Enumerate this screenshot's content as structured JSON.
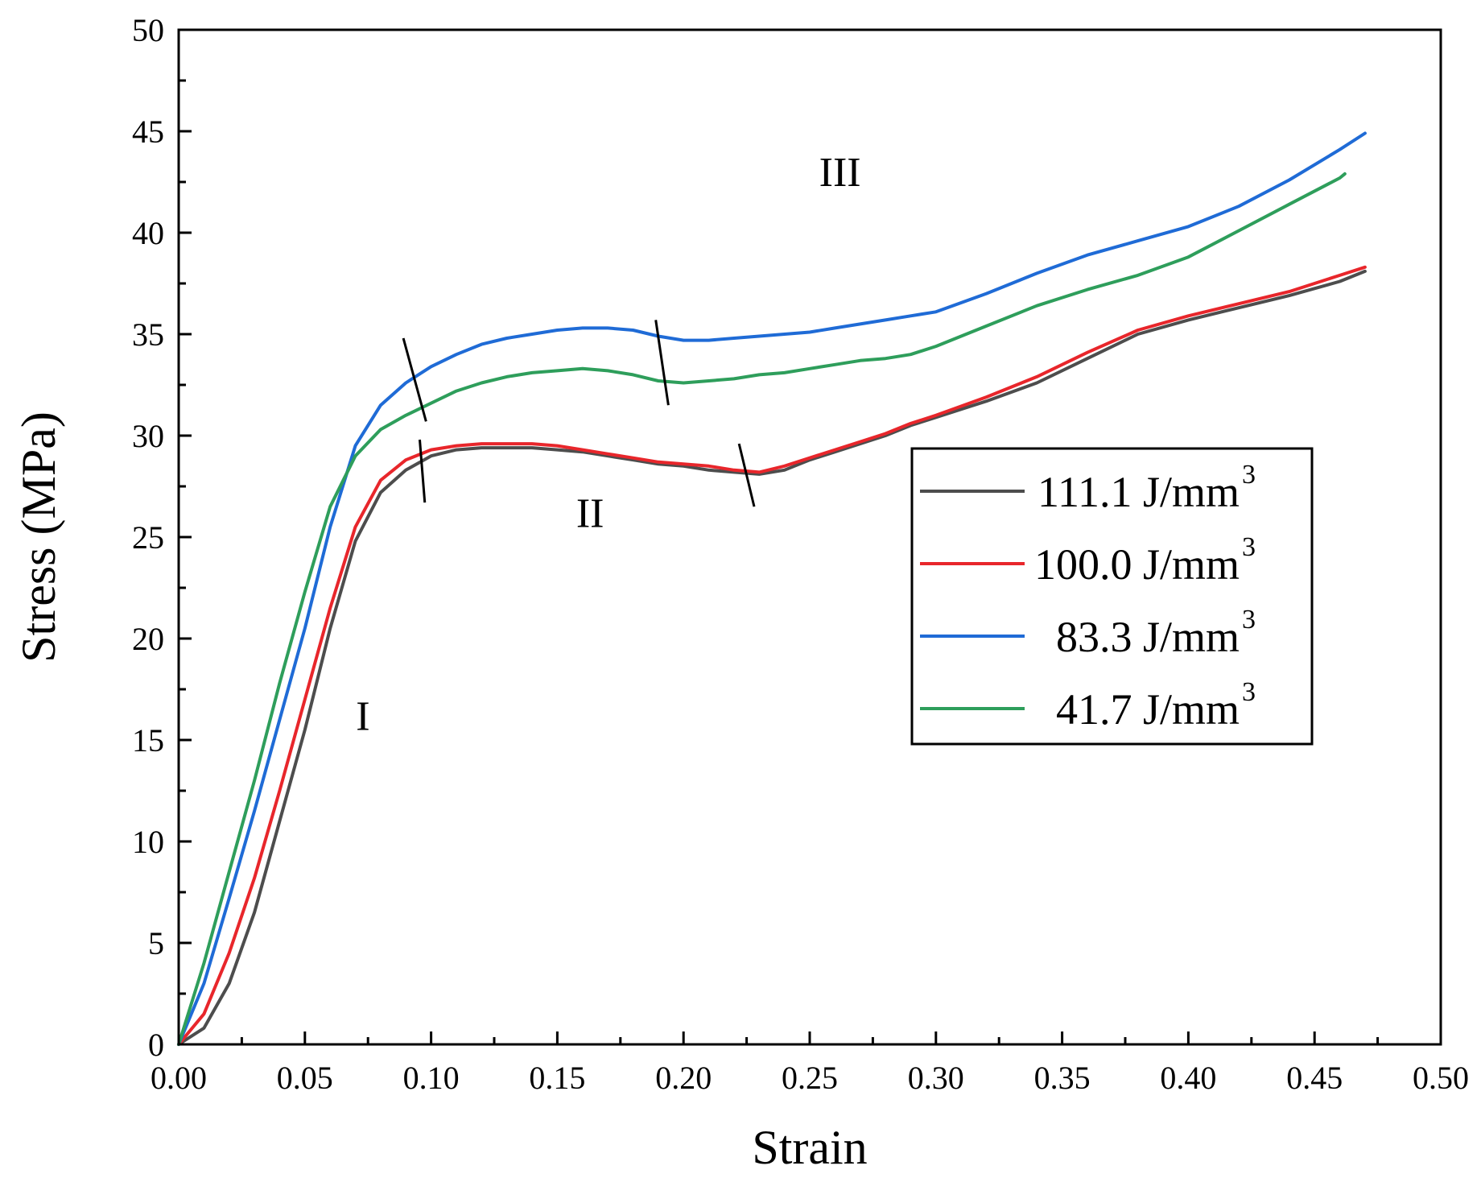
{
  "chart_data": {
    "type": "line",
    "xlabel": "Strain",
    "ylabel": "Stress (MPa)",
    "xlim": [
      0,
      0.5
    ],
    "ylim": [
      0,
      50
    ],
    "x_ticks": [
      "0.00",
      "0.05",
      "0.10",
      "0.15",
      "0.20",
      "0.25",
      "0.30",
      "0.35",
      "0.40",
      "0.45",
      "0.50"
    ],
    "y_ticks": [
      "0",
      "5",
      "10",
      "15",
      "20",
      "25",
      "30",
      "35",
      "40",
      "45",
      "50"
    ],
    "grid": false,
    "legend_position": "middle-right",
    "series": [
      {
        "name": "111.1 J/mm",
        "name_sup": "3",
        "color": "#4d4d4d",
        "x": [
          0,
          0.01,
          0.02,
          0.03,
          0.04,
          0.05,
          0.06,
          0.07,
          0.08,
          0.09,
          0.1,
          0.11,
          0.12,
          0.13,
          0.14,
          0.15,
          0.16,
          0.17,
          0.18,
          0.19,
          0.2,
          0.21,
          0.22,
          0.23,
          0.24,
          0.25,
          0.26,
          0.27,
          0.28,
          0.29,
          0.3,
          0.32,
          0.34,
          0.36,
          0.38,
          0.4,
          0.42,
          0.44,
          0.46,
          0.47
        ],
        "y": [
          0,
          0.8,
          3,
          6.5,
          11,
          15.5,
          20.5,
          24.8,
          27.2,
          28.3,
          29.0,
          29.3,
          29.4,
          29.4,
          29.4,
          29.3,
          29.2,
          29.0,
          28.8,
          28.6,
          28.5,
          28.3,
          28.2,
          28.1,
          28.3,
          28.8,
          29.2,
          29.6,
          30.0,
          30.5,
          30.9,
          31.7,
          32.6,
          33.8,
          35.0,
          35.7,
          36.3,
          36.9,
          37.6,
          38.1
        ]
      },
      {
        "name": "100.0 J/mm",
        "name_sup": "3",
        "color": "#e8262b",
        "x": [
          0,
          0.01,
          0.02,
          0.03,
          0.04,
          0.05,
          0.06,
          0.07,
          0.08,
          0.09,
          0.1,
          0.11,
          0.12,
          0.13,
          0.14,
          0.15,
          0.16,
          0.17,
          0.18,
          0.19,
          0.2,
          0.21,
          0.22,
          0.23,
          0.24,
          0.25,
          0.26,
          0.27,
          0.28,
          0.29,
          0.3,
          0.32,
          0.34,
          0.36,
          0.38,
          0.4,
          0.42,
          0.44,
          0.46,
          0.47
        ],
        "y": [
          0,
          1.5,
          4.5,
          8.2,
          12.5,
          17.0,
          21.5,
          25.5,
          27.8,
          28.8,
          29.3,
          29.5,
          29.6,
          29.6,
          29.6,
          29.5,
          29.3,
          29.1,
          28.9,
          28.7,
          28.6,
          28.5,
          28.3,
          28.2,
          28.5,
          28.9,
          29.3,
          29.7,
          30.1,
          30.6,
          31.0,
          31.9,
          32.9,
          34.1,
          35.2,
          35.9,
          36.5,
          37.1,
          37.9,
          38.3
        ]
      },
      {
        "name": "83.3 J/mm",
        "name_sup": "3",
        "color": "#1f6bd6",
        "x": [
          0,
          0.01,
          0.02,
          0.03,
          0.04,
          0.05,
          0.06,
          0.07,
          0.08,
          0.09,
          0.1,
          0.11,
          0.12,
          0.13,
          0.14,
          0.15,
          0.16,
          0.17,
          0.18,
          0.19,
          0.2,
          0.21,
          0.22,
          0.23,
          0.24,
          0.25,
          0.26,
          0.27,
          0.28,
          0.29,
          0.3,
          0.32,
          0.34,
          0.36,
          0.38,
          0.4,
          0.42,
          0.44,
          0.46,
          0.47
        ],
        "y": [
          0,
          3.0,
          7.2,
          11.5,
          16.0,
          20.5,
          25.5,
          29.5,
          31.5,
          32.6,
          33.4,
          34.0,
          34.5,
          34.8,
          35.0,
          35.2,
          35.3,
          35.3,
          35.2,
          34.9,
          34.7,
          34.7,
          34.8,
          34.9,
          35.0,
          35.1,
          35.3,
          35.5,
          35.7,
          35.9,
          36.1,
          37.0,
          38.0,
          38.9,
          39.6,
          40.3,
          41.3,
          42.6,
          44.1,
          44.9
        ]
      },
      {
        "name": "41.7 J/mm",
        "name_sup": "3",
        "color": "#2e9e5b",
        "x": [
          0,
          0.01,
          0.02,
          0.03,
          0.04,
          0.05,
          0.06,
          0.07,
          0.08,
          0.09,
          0.1,
          0.11,
          0.12,
          0.13,
          0.14,
          0.15,
          0.16,
          0.17,
          0.18,
          0.19,
          0.2,
          0.21,
          0.22,
          0.23,
          0.24,
          0.25,
          0.26,
          0.27,
          0.28,
          0.29,
          0.3,
          0.32,
          0.34,
          0.36,
          0.38,
          0.4,
          0.42,
          0.44,
          0.46,
          0.462
        ],
        "y": [
          0,
          4.0,
          8.5,
          13.0,
          17.8,
          22.3,
          26.5,
          29.0,
          30.3,
          31.0,
          31.6,
          32.2,
          32.6,
          32.9,
          33.1,
          33.2,
          33.3,
          33.2,
          33.0,
          32.7,
          32.6,
          32.7,
          32.8,
          33.0,
          33.1,
          33.3,
          33.5,
          33.7,
          33.8,
          34.0,
          34.4,
          35.4,
          36.4,
          37.2,
          37.9,
          38.8,
          40.1,
          41.4,
          42.7,
          42.9
        ]
      }
    ],
    "region_labels": [
      {
        "text": "I",
        "x": 0.073,
        "y": 15.5
      },
      {
        "text": "II",
        "x": 0.163,
        "y": 25.5
      },
      {
        "text": "III",
        "x": 0.262,
        "y": 42.3
      }
    ],
    "boundary_marks": [
      {
        "x1": 0.089,
        "y1": 34.8,
        "x2": 0.098,
        "y2": 30.7
      },
      {
        "x1": 0.0955,
        "y1": 29.8,
        "x2": 0.0975,
        "y2": 26.7
      },
      {
        "x1": 0.189,
        "y1": 35.7,
        "x2": 0.194,
        "y2": 31.5
      },
      {
        "x1": 0.222,
        "y1": 29.6,
        "x2": 0.228,
        "y2": 26.5
      }
    ]
  }
}
